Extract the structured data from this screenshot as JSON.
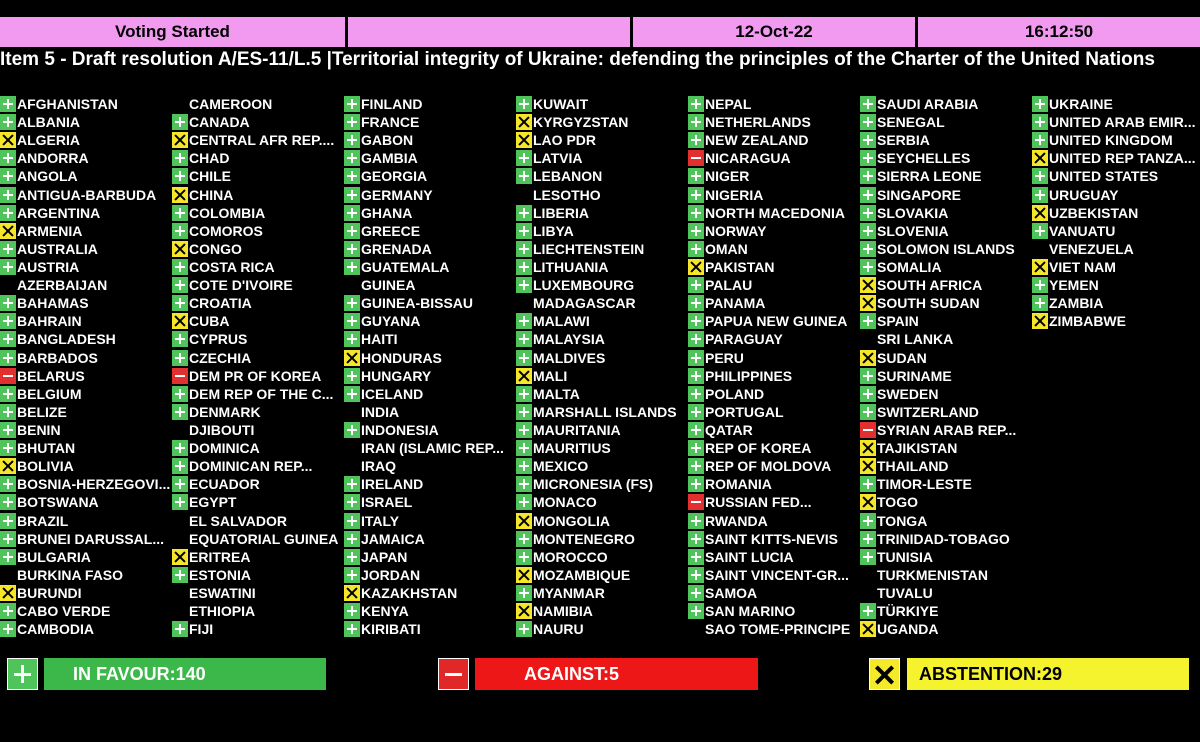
{
  "header": {
    "status": "Voting Started",
    "blank": "",
    "date": "12-Oct-22",
    "time": "16:12:50"
  },
  "title": "Item 5 - Draft resolution A/ES-11/L.5 |Territorial integrity of Ukraine: defending the principles of the Charter of the United Nations",
  "columns": [
    [
      {
        "name": "AFGHANISTAN",
        "vote": "yes"
      },
      {
        "name": "ALBANIA",
        "vote": "yes"
      },
      {
        "name": "ALGERIA",
        "vote": "abs"
      },
      {
        "name": "ANDORRA",
        "vote": "yes"
      },
      {
        "name": "ANGOLA",
        "vote": "yes"
      },
      {
        "name": "ANTIGUA-BARBUDA",
        "vote": "yes"
      },
      {
        "name": "ARGENTINA",
        "vote": "yes"
      },
      {
        "name": "ARMENIA",
        "vote": "abs"
      },
      {
        "name": "AUSTRALIA",
        "vote": "yes"
      },
      {
        "name": "AUSTRIA",
        "vote": "yes"
      },
      {
        "name": "AZERBAIJAN",
        "vote": "none"
      },
      {
        "name": "BAHAMAS",
        "vote": "yes"
      },
      {
        "name": "BAHRAIN",
        "vote": "yes"
      },
      {
        "name": "BANGLADESH",
        "vote": "yes"
      },
      {
        "name": "BARBADOS",
        "vote": "yes"
      },
      {
        "name": "BELARUS",
        "vote": "no"
      },
      {
        "name": "BELGIUM",
        "vote": "yes"
      },
      {
        "name": "BELIZE",
        "vote": "yes"
      },
      {
        "name": "BENIN",
        "vote": "yes"
      },
      {
        "name": "BHUTAN",
        "vote": "yes"
      },
      {
        "name": "BOLIVIA",
        "vote": "abs"
      },
      {
        "name": "BOSNIA-HERZEGOVI...",
        "vote": "yes"
      },
      {
        "name": "BOTSWANA",
        "vote": "yes"
      },
      {
        "name": "BRAZIL",
        "vote": "yes"
      },
      {
        "name": "BRUNEI DARUSSAL...",
        "vote": "yes"
      },
      {
        "name": "BULGARIA",
        "vote": "yes"
      },
      {
        "name": "BURKINA FASO",
        "vote": "none"
      },
      {
        "name": "BURUNDI",
        "vote": "abs"
      },
      {
        "name": "CABO VERDE",
        "vote": "yes"
      },
      {
        "name": "CAMBODIA",
        "vote": "yes"
      }
    ],
    [
      {
        "name": "CAMEROON",
        "vote": "none"
      },
      {
        "name": "CANADA",
        "vote": "yes"
      },
      {
        "name": "CENTRAL AFR REP....",
        "vote": "abs"
      },
      {
        "name": "CHAD",
        "vote": "yes"
      },
      {
        "name": "CHILE",
        "vote": "yes"
      },
      {
        "name": "CHINA",
        "vote": "abs"
      },
      {
        "name": "COLOMBIA",
        "vote": "yes"
      },
      {
        "name": "COMOROS",
        "vote": "yes"
      },
      {
        "name": "CONGO",
        "vote": "abs"
      },
      {
        "name": "COSTA RICA",
        "vote": "yes"
      },
      {
        "name": "COTE D'IVOIRE",
        "vote": "yes"
      },
      {
        "name": "CROATIA",
        "vote": "yes"
      },
      {
        "name": "CUBA",
        "vote": "abs"
      },
      {
        "name": "CYPRUS",
        "vote": "yes"
      },
      {
        "name": "CZECHIA",
        "vote": "yes"
      },
      {
        "name": "DEM PR OF KOREA",
        "vote": "no"
      },
      {
        "name": "DEM REP OF THE C...",
        "vote": "yes"
      },
      {
        "name": "DENMARK",
        "vote": "yes"
      },
      {
        "name": "DJIBOUTI",
        "vote": "none"
      },
      {
        "name": "DOMINICA",
        "vote": "yes"
      },
      {
        "name": "DOMINICAN REP...",
        "vote": "yes"
      },
      {
        "name": "ECUADOR",
        "vote": "yes"
      },
      {
        "name": "EGYPT",
        "vote": "yes"
      },
      {
        "name": "EL SALVADOR",
        "vote": "none"
      },
      {
        "name": "EQUATORIAL GUINEA",
        "vote": "none"
      },
      {
        "name": "ERITREA",
        "vote": "abs"
      },
      {
        "name": "ESTONIA",
        "vote": "yes"
      },
      {
        "name": "ESWATINI",
        "vote": "none"
      },
      {
        "name": "ETHIOPIA",
        "vote": "none"
      },
      {
        "name": "FIJI",
        "vote": "yes"
      }
    ],
    [
      {
        "name": "FINLAND",
        "vote": "yes"
      },
      {
        "name": "FRANCE",
        "vote": "yes"
      },
      {
        "name": "GABON",
        "vote": "yes"
      },
      {
        "name": "GAMBIA",
        "vote": "yes"
      },
      {
        "name": "GEORGIA",
        "vote": "yes"
      },
      {
        "name": "GERMANY",
        "vote": "yes"
      },
      {
        "name": "GHANA",
        "vote": "yes"
      },
      {
        "name": "GREECE",
        "vote": "yes"
      },
      {
        "name": "GRENADA",
        "vote": "yes"
      },
      {
        "name": "GUATEMALA",
        "vote": "yes"
      },
      {
        "name": "GUINEA",
        "vote": "none"
      },
      {
        "name": "GUINEA-BISSAU",
        "vote": "yes"
      },
      {
        "name": "GUYANA",
        "vote": "yes"
      },
      {
        "name": "HAITI",
        "vote": "yes"
      },
      {
        "name": "HONDURAS",
        "vote": "abs"
      },
      {
        "name": "HUNGARY",
        "vote": "yes"
      },
      {
        "name": "ICELAND",
        "vote": "yes"
      },
      {
        "name": "INDIA",
        "vote": "none"
      },
      {
        "name": "INDONESIA",
        "vote": "yes"
      },
      {
        "name": "IRAN (ISLAMIC REP...",
        "vote": "none"
      },
      {
        "name": "IRAQ",
        "vote": "none"
      },
      {
        "name": "IRELAND",
        "vote": "yes"
      },
      {
        "name": "ISRAEL",
        "vote": "yes"
      },
      {
        "name": "ITALY",
        "vote": "yes"
      },
      {
        "name": "JAMAICA",
        "vote": "yes"
      },
      {
        "name": "JAPAN",
        "vote": "yes"
      },
      {
        "name": "JORDAN",
        "vote": "yes"
      },
      {
        "name": "KAZAKHSTAN",
        "vote": "abs"
      },
      {
        "name": "KENYA",
        "vote": "yes"
      },
      {
        "name": "KIRIBATI",
        "vote": "yes"
      }
    ],
    [
      {
        "name": "KUWAIT",
        "vote": "yes"
      },
      {
        "name": "KYRGYZSTAN",
        "vote": "abs"
      },
      {
        "name": "LAO PDR",
        "vote": "abs"
      },
      {
        "name": "LATVIA",
        "vote": "yes"
      },
      {
        "name": "LEBANON",
        "vote": "yes"
      },
      {
        "name": "LESOTHO",
        "vote": "none"
      },
      {
        "name": "LIBERIA",
        "vote": "yes"
      },
      {
        "name": "LIBYA",
        "vote": "yes"
      },
      {
        "name": "LIECHTENSTEIN",
        "vote": "yes"
      },
      {
        "name": "LITHUANIA",
        "vote": "yes"
      },
      {
        "name": "LUXEMBOURG",
        "vote": "yes"
      },
      {
        "name": "MADAGASCAR",
        "vote": "none"
      },
      {
        "name": "MALAWI",
        "vote": "yes"
      },
      {
        "name": "MALAYSIA",
        "vote": "yes"
      },
      {
        "name": "MALDIVES",
        "vote": "yes"
      },
      {
        "name": "MALI",
        "vote": "abs"
      },
      {
        "name": "MALTA",
        "vote": "yes"
      },
      {
        "name": "MARSHALL ISLANDS",
        "vote": "yes"
      },
      {
        "name": "MAURITANIA",
        "vote": "yes"
      },
      {
        "name": "MAURITIUS",
        "vote": "yes"
      },
      {
        "name": "MEXICO",
        "vote": "yes"
      },
      {
        "name": "MICRONESIA (FS)",
        "vote": "yes"
      },
      {
        "name": "MONACO",
        "vote": "yes"
      },
      {
        "name": "MONGOLIA",
        "vote": "abs"
      },
      {
        "name": "MONTENEGRO",
        "vote": "yes"
      },
      {
        "name": "MOROCCO",
        "vote": "yes"
      },
      {
        "name": "MOZAMBIQUE",
        "vote": "abs"
      },
      {
        "name": "MYANMAR",
        "vote": "yes"
      },
      {
        "name": "NAMIBIA",
        "vote": "abs"
      },
      {
        "name": "NAURU",
        "vote": "yes"
      }
    ],
    [
      {
        "name": "NEPAL",
        "vote": "yes"
      },
      {
        "name": "NETHERLANDS",
        "vote": "yes"
      },
      {
        "name": "NEW ZEALAND",
        "vote": "yes"
      },
      {
        "name": "NICARAGUA",
        "vote": "no"
      },
      {
        "name": "NIGER",
        "vote": "yes"
      },
      {
        "name": "NIGERIA",
        "vote": "yes"
      },
      {
        "name": "NORTH MACEDONIA",
        "vote": "yes"
      },
      {
        "name": "NORWAY",
        "vote": "yes"
      },
      {
        "name": "OMAN",
        "vote": "yes"
      },
      {
        "name": "PAKISTAN",
        "vote": "abs"
      },
      {
        "name": "PALAU",
        "vote": "yes"
      },
      {
        "name": "PANAMA",
        "vote": "yes"
      },
      {
        "name": "PAPUA NEW GUINEA",
        "vote": "yes"
      },
      {
        "name": "PARAGUAY",
        "vote": "yes"
      },
      {
        "name": "PERU",
        "vote": "yes"
      },
      {
        "name": "PHILIPPINES",
        "vote": "yes"
      },
      {
        "name": "POLAND",
        "vote": "yes"
      },
      {
        "name": "PORTUGAL",
        "vote": "yes"
      },
      {
        "name": "QATAR",
        "vote": "yes"
      },
      {
        "name": "REP OF KOREA",
        "vote": "yes"
      },
      {
        "name": "REP OF MOLDOVA",
        "vote": "yes"
      },
      {
        "name": "ROMANIA",
        "vote": "yes"
      },
      {
        "name": "RUSSIAN FED...",
        "vote": "no"
      },
      {
        "name": "RWANDA",
        "vote": "yes"
      },
      {
        "name": "SAINT KITTS-NEVIS",
        "vote": "yes"
      },
      {
        "name": "SAINT LUCIA",
        "vote": "yes"
      },
      {
        "name": "SAINT VINCENT-GR...",
        "vote": "yes"
      },
      {
        "name": "SAMOA",
        "vote": "yes"
      },
      {
        "name": "SAN MARINO",
        "vote": "yes"
      },
      {
        "name": "SAO TOME-PRINCIPE",
        "vote": "none"
      }
    ],
    [
      {
        "name": "SAUDI ARABIA",
        "vote": "yes"
      },
      {
        "name": "SENEGAL",
        "vote": "yes"
      },
      {
        "name": "SERBIA",
        "vote": "yes"
      },
      {
        "name": "SEYCHELLES",
        "vote": "yes"
      },
      {
        "name": "SIERRA LEONE",
        "vote": "yes"
      },
      {
        "name": "SINGAPORE",
        "vote": "yes"
      },
      {
        "name": "SLOVAKIA",
        "vote": "yes"
      },
      {
        "name": "SLOVENIA",
        "vote": "yes"
      },
      {
        "name": "SOLOMON ISLANDS",
        "vote": "yes"
      },
      {
        "name": "SOMALIA",
        "vote": "yes"
      },
      {
        "name": "SOUTH AFRICA",
        "vote": "abs"
      },
      {
        "name": "SOUTH SUDAN",
        "vote": "abs"
      },
      {
        "name": "SPAIN",
        "vote": "yes"
      },
      {
        "name": "SRI LANKA",
        "vote": "none"
      },
      {
        "name": "SUDAN",
        "vote": "abs"
      },
      {
        "name": "SURINAME",
        "vote": "yes"
      },
      {
        "name": "SWEDEN",
        "vote": "yes"
      },
      {
        "name": "SWITZERLAND",
        "vote": "yes"
      },
      {
        "name": "SYRIAN ARAB REP...",
        "vote": "no"
      },
      {
        "name": "TAJIKISTAN",
        "vote": "abs"
      },
      {
        "name": "THAILAND",
        "vote": "abs"
      },
      {
        "name": "TIMOR-LESTE",
        "vote": "yes"
      },
      {
        "name": "TOGO",
        "vote": "abs"
      },
      {
        "name": "TONGA",
        "vote": "yes"
      },
      {
        "name": "TRINIDAD-TOBAGO",
        "vote": "yes"
      },
      {
        "name": "TUNISIA",
        "vote": "yes"
      },
      {
        "name": "TURKMENISTAN",
        "vote": "none"
      },
      {
        "name": "TUVALU",
        "vote": "none"
      },
      {
        "name": "TÜRKIYE",
        "vote": "yes"
      },
      {
        "name": "UGANDA",
        "vote": "abs"
      }
    ],
    [
      {
        "name": "UKRAINE",
        "vote": "yes"
      },
      {
        "name": "UNITED ARAB EMIR...",
        "vote": "yes"
      },
      {
        "name": "UNITED KINGDOM",
        "vote": "yes"
      },
      {
        "name": "UNITED REP TANZA...",
        "vote": "abs"
      },
      {
        "name": "UNITED STATES",
        "vote": "yes"
      },
      {
        "name": "URUGUAY",
        "vote": "yes"
      },
      {
        "name": "UZBEKISTAN",
        "vote": "abs"
      },
      {
        "name": "VANUATU",
        "vote": "yes"
      },
      {
        "name": "VENEZUELA",
        "vote": "none"
      },
      {
        "name": "VIET NAM",
        "vote": "abs"
      },
      {
        "name": "YEMEN",
        "vote": "yes"
      },
      {
        "name": "ZAMBIA",
        "vote": "yes"
      },
      {
        "name": "ZIMBABWE",
        "vote": "abs"
      }
    ]
  ],
  "totals": {
    "favour_label": "IN FAVOUR:140",
    "against_label": "AGAINST:5",
    "abstention_label": "ABSTENTION:29"
  },
  "colors": {
    "header_bg": "#f19af0",
    "yes": "#4fc45a",
    "no": "#e23030",
    "abstain": "#f5e62a",
    "background": "#000000"
  }
}
